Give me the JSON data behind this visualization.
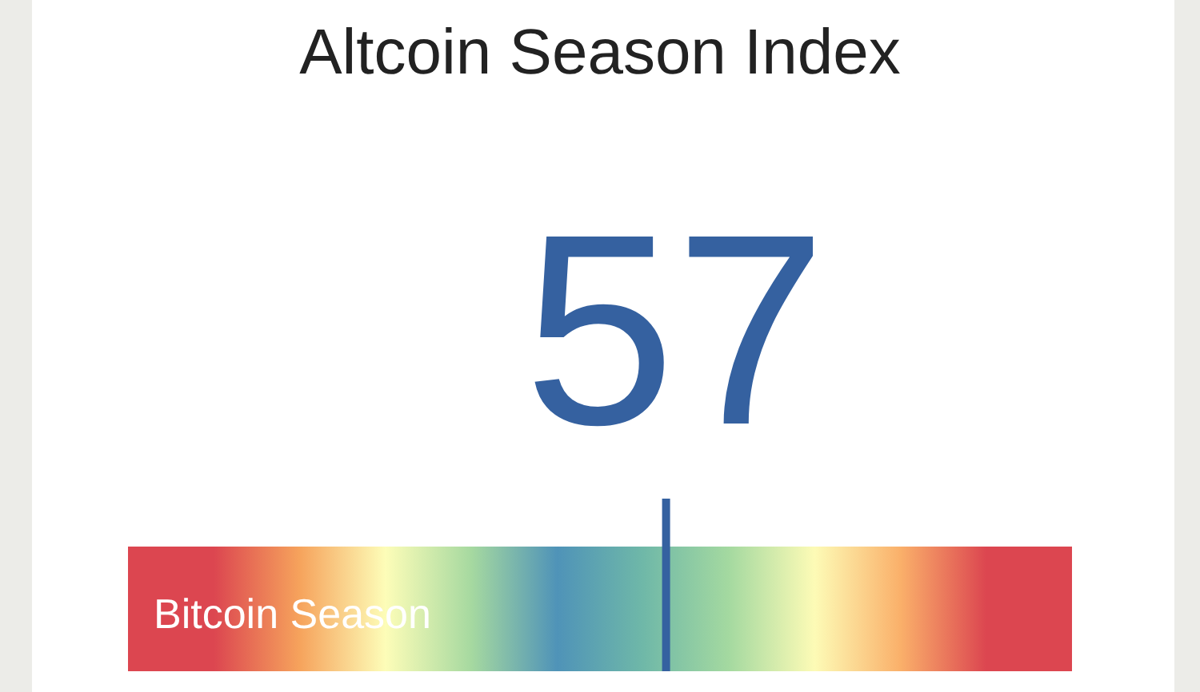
{
  "chart_data": {
    "type": "other",
    "title": "Altcoin Season Index",
    "values": [
      57
    ],
    "colors": [
      "#3561a0"
    ],
    "data_labels": true,
    "annotations": [
      "Bitcoin Season"
    ]
  }
}
